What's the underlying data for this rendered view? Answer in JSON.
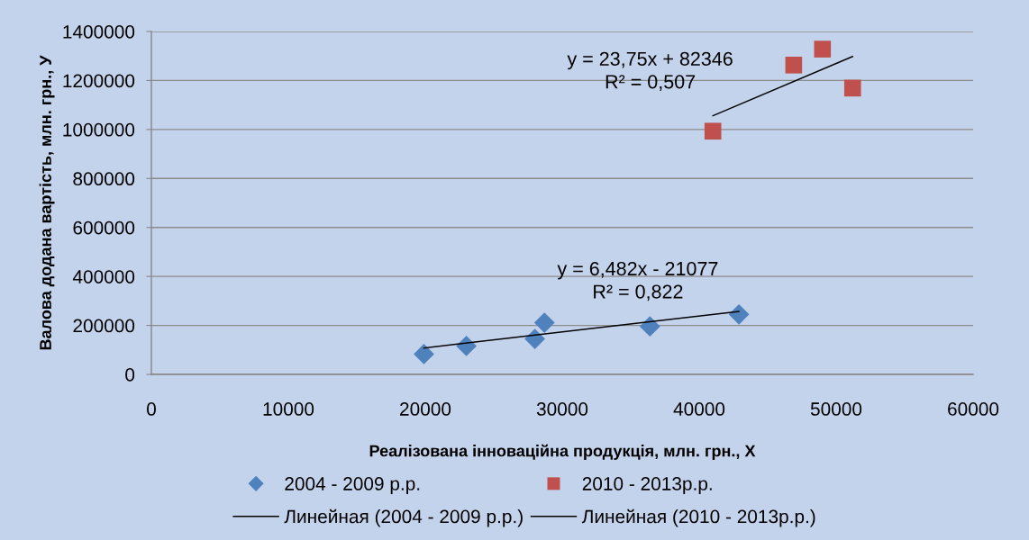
{
  "chart_data": {
    "type": "scatter",
    "xlabel": "Реалізована інноваційна продукція, млн. грн., X",
    "ylabel": "Валова додана вартість, млн. грн., У",
    "xlim": [
      0,
      60000
    ],
    "xticks": [
      0,
      10000,
      20000,
      30000,
      40000,
      50000,
      60000
    ],
    "ylim": [
      0,
      1400000
    ],
    "yticks": [
      0,
      200000,
      400000,
      600000,
      800000,
      1000000,
      1200000,
      1400000
    ],
    "grid": "y",
    "legend": "bottom",
    "annotations": [
      "y = 6,482x - 21077\nR² = 0,822",
      "y = 23,75x + 82346\nR² = 0,507"
    ],
    "series": [
      {
        "name": "2004 - 2009 р.р.",
        "marker": "diamond",
        "color": "#4f81bd",
        "x": [
          19900,
          23000,
          28000,
          28700,
          36400,
          42900
        ],
        "values": [
          83000,
          116000,
          145000,
          211000,
          196000,
          245000
        ]
      },
      {
        "name": "2010 - 2013р.р.",
        "marker": "square",
        "color": "#c0504d",
        "x": [
          41000,
          46900,
          49000,
          51200
        ],
        "values": [
          993000,
          1263000,
          1328000,
          1169000
        ]
      },
      {
        "name": "Линейная (2004 - 2009 р.р.)",
        "type": "line",
        "marker": "none",
        "color": "#000000",
        "x": [
          19900,
          42900
        ],
        "values": [
          108000,
          257000
        ]
      },
      {
        "name": "Линейная (2010 - 2013р.р.)",
        "type": "line",
        "marker": "none",
        "color": "#000000",
        "x": [
          41000,
          51200
        ],
        "values": [
          1056000,
          1298000
        ]
      }
    ]
  }
}
